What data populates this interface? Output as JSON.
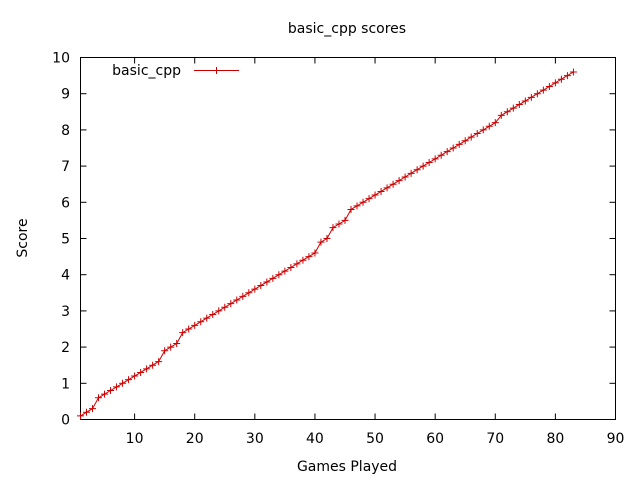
{
  "chart_data": {
    "type": "line",
    "title": "basic_cpp scores",
    "xlabel": "Games Played",
    "ylabel": "Score",
    "xlim": [
      1,
      90
    ],
    "ylim": [
      0,
      10
    ],
    "xticks": [
      10,
      20,
      30,
      40,
      50,
      60,
      70,
      80,
      90
    ],
    "yticks": [
      0,
      1,
      2,
      3,
      4,
      5,
      6,
      7,
      8,
      9,
      10
    ],
    "grid": false,
    "legend_position": "top-left",
    "colors": {
      "series": "#cc0000",
      "axes": "#000000"
    },
    "series": [
      {
        "name": "basic_cpp",
        "marker": "plus",
        "x": [
          1,
          2,
          3,
          4,
          5,
          6,
          7,
          8,
          9,
          10,
          11,
          12,
          13,
          14,
          15,
          16,
          17,
          18,
          19,
          20,
          21,
          22,
          23,
          24,
          25,
          26,
          27,
          28,
          29,
          30,
          31,
          32,
          33,
          34,
          35,
          36,
          37,
          38,
          39,
          40,
          41,
          42,
          43,
          44,
          45,
          46,
          47,
          48,
          49,
          50,
          51,
          52,
          53,
          54,
          55,
          56,
          57,
          58,
          59,
          60,
          61,
          62,
          63,
          64,
          65,
          66,
          67,
          68,
          69,
          70,
          71,
          72,
          73,
          74,
          75,
          76,
          77,
          78,
          79,
          80,
          81,
          82,
          83
        ],
        "values": [
          0.1,
          0.2,
          0.3,
          0.6,
          0.7,
          0.8,
          0.9,
          1.0,
          1.1,
          1.2,
          1.3,
          1.4,
          1.5,
          1.6,
          1.9,
          2.0,
          2.1,
          2.4,
          2.5,
          2.6,
          2.7,
          2.8,
          2.9,
          3.0,
          3.1,
          3.2,
          3.3,
          3.4,
          3.5,
          3.6,
          3.7,
          3.8,
          3.9,
          4.0,
          4.1,
          4.2,
          4.3,
          4.4,
          4.5,
          4.6,
          4.9,
          5.0,
          5.3,
          5.4,
          5.5,
          5.8,
          5.9,
          6.0,
          6.1,
          6.2,
          6.3,
          6.4,
          6.5,
          6.6,
          6.7,
          6.8,
          6.9,
          7.0,
          7.1,
          7.2,
          7.3,
          7.4,
          7.5,
          7.6,
          7.7,
          7.8,
          7.9,
          8.0,
          8.1,
          8.2,
          8.4,
          8.5,
          8.6,
          8.7,
          8.8,
          8.9,
          9.0,
          9.1,
          9.2,
          9.3,
          9.4,
          9.5,
          9.6
        ]
      }
    ]
  }
}
